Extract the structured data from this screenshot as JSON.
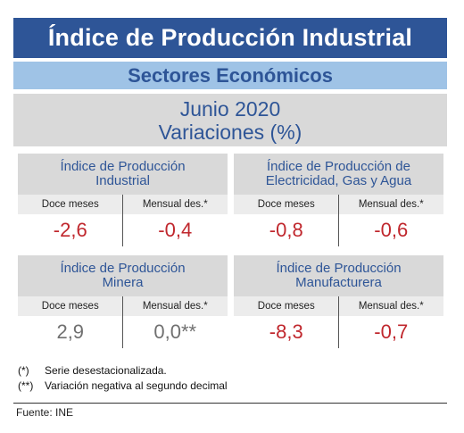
{
  "header": {
    "title": "Índice de Producción Industrial",
    "subtitle": "Sectores Económicos"
  },
  "period": {
    "line1": "Junio 2020",
    "line2": "Variaciones (%)"
  },
  "panels": [
    {
      "title_line1": "Índice de Producción",
      "title_line2": "Industrial",
      "col1_label": "Doce meses",
      "col2_label": "Mensual des.*",
      "col1_value": "-2,6",
      "col2_value": "-0,4"
    },
    {
      "title_line1": "Índice de Producción de",
      "title_line2": "Electricidad, Gas y Agua",
      "col1_label": "Doce meses",
      "col2_label": "Mensual des.*",
      "col1_value": "-0,8",
      "col2_value": "-0,6"
    },
    {
      "title_line1": "Índice de Producción",
      "title_line2": "Minera",
      "col1_label": "Doce meses",
      "col2_label": "Mensual des.*",
      "col1_value": "2,9",
      "col2_value": "0,0**"
    },
    {
      "title_line1": "Índice de Producción",
      "title_line2": "Manufacturera",
      "col1_label": "Doce meses",
      "col2_label": "Mensual des.*",
      "col1_value": "-8,3",
      "col2_value": "-0,7"
    }
  ],
  "footnotes": [
    {
      "mark": "(*)",
      "text": "Serie desestacionalizada."
    },
    {
      "mark": "(**)",
      "text": "Variación negativa al segundo decimal"
    }
  ],
  "source": "Fuente: INE",
  "colors": {
    "title_bg": "#2e5597",
    "subtitle_bg": "#9fc3e6",
    "panel_bg": "#d9d9d9",
    "negative": "#c0272d",
    "neutral": "#707070"
  }
}
